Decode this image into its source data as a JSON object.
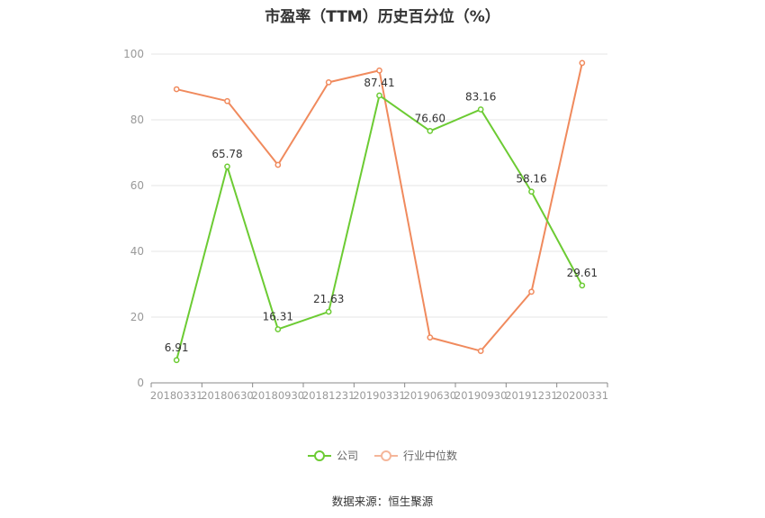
{
  "chart_data": {
    "type": "line",
    "title": "市盈率（TTM）历史百分位（%）",
    "categories": [
      "20180331",
      "20180630",
      "20180930",
      "20181231",
      "20190331",
      "20190630",
      "20190930",
      "20191231",
      "20200331"
    ],
    "ylim": [
      0,
      100
    ],
    "yticks": [
      0,
      20,
      40,
      60,
      80,
      100
    ],
    "grid": true,
    "legend_position": "bottom",
    "series": [
      {
        "name": "公司",
        "color": "#6ccb33",
        "values": [
          6.91,
          65.78,
          16.31,
          21.63,
          87.41,
          76.6,
          83.16,
          58.16,
          29.61
        ],
        "labels": [
          "6.91",
          "65.78",
          "16.31",
          "21.63",
          "87.41",
          "76.60",
          "83.16",
          "58.16",
          "29.61"
        ]
      },
      {
        "name": "行业中位数",
        "color": "#f08a5d",
        "values": [
          89.3,
          85.7,
          66.3,
          91.4,
          95.0,
          13.8,
          9.7,
          27.7,
          97.3
        ]
      }
    ]
  },
  "source": "数据来源：恒生聚源"
}
